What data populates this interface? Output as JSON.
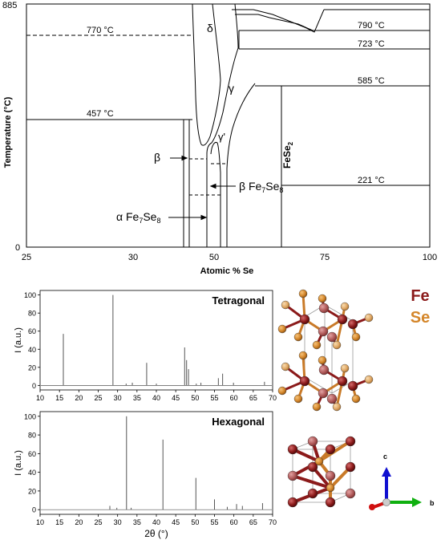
{
  "phase_diagram": {
    "xlabel": "Atomic % Se",
    "ylabel": "Temperature (°C)",
    "xticks": [
      "25",
      "30",
      "50",
      "75",
      "100"
    ],
    "yticks": [
      "885",
      "0"
    ],
    "temps": {
      "t770": "770 °C",
      "t790": "790 °C",
      "t723": "723 °C",
      "t585": "585 °C",
      "t457": "457 °C",
      "t221": "221 °C"
    },
    "phases": {
      "delta": "δ",
      "gamma": "γ",
      "gamma_prime": "γ'",
      "beta": "β",
      "beta_fe7se8": "β Fe",
      "alpha_fe7se8": "α Fe",
      "fese2": "FeSe",
      "sub_7": "7",
      "sub_se": "Se",
      "sub_8": "8",
      "sub_2": "2"
    }
  },
  "legend": {
    "fe": "Fe",
    "se": "Se",
    "fe_color": "#8b1a1a",
    "se_color": "#d4862a"
  },
  "axes_labels": {
    "c": "c",
    "b": "b"
  },
  "chart_data": [
    {
      "type": "line",
      "title": "Tetragonal",
      "xlabel": "2θ (°)",
      "ylabel": "I (a.u.)",
      "xlim": [
        10,
        70
      ],
      "ylim": [
        -5,
        105
      ],
      "xticks": [
        10,
        15,
        20,
        25,
        30,
        35,
        40,
        45,
        50,
        55,
        60,
        65,
        70
      ],
      "yticks": [
        0,
        20,
        40,
        60,
        80,
        100
      ],
      "peaks": [
        {
          "x": 16.0,
          "y": 57
        },
        {
          "x": 28.8,
          "y": 100
        },
        {
          "x": 32.2,
          "y": 2
        },
        {
          "x": 33.8,
          "y": 3
        },
        {
          "x": 37.5,
          "y": 25
        },
        {
          "x": 40.0,
          "y": 2
        },
        {
          "x": 47.3,
          "y": 42
        },
        {
          "x": 47.8,
          "y": 28
        },
        {
          "x": 48.3,
          "y": 18
        },
        {
          "x": 50.3,
          "y": 2
        },
        {
          "x": 51.5,
          "y": 3
        },
        {
          "x": 56.0,
          "y": 8
        },
        {
          "x": 57.1,
          "y": 13
        },
        {
          "x": 59.9,
          "y": 3
        },
        {
          "x": 67.9,
          "y": 4
        }
      ]
    },
    {
      "type": "line",
      "title": "Hexagonal",
      "xlabel": "2θ (°)",
      "ylabel": "I (a.u.)",
      "xlim": [
        10,
        70
      ],
      "ylim": [
        -5,
        105
      ],
      "xticks": [
        10,
        15,
        20,
        25,
        30,
        35,
        40,
        45,
        50,
        55,
        60,
        65,
        70
      ],
      "yticks": [
        0,
        20,
        40,
        60,
        80,
        100
      ],
      "peaks": [
        {
          "x": 28.0,
          "y": 4
        },
        {
          "x": 29.8,
          "y": 2
        },
        {
          "x": 32.3,
          "y": 100
        },
        {
          "x": 33.5,
          "y": 2
        },
        {
          "x": 41.7,
          "y": 75
        },
        {
          "x": 50.2,
          "y": 34
        },
        {
          "x": 55.0,
          "y": 11
        },
        {
          "x": 58.3,
          "y": 3
        },
        {
          "x": 60.7,
          "y": 6
        },
        {
          "x": 62.2,
          "y": 4
        },
        {
          "x": 67.4,
          "y": 7
        }
      ]
    }
  ]
}
